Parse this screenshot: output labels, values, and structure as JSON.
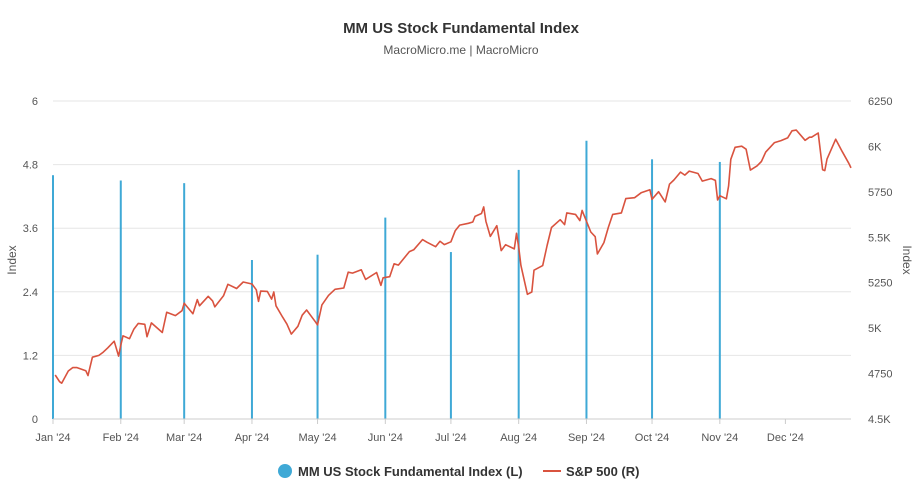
{
  "chart_data": {
    "type": "bar+line",
    "title": "MM US Stock Fundamental Index",
    "subtitle": "MacroMicro.me | MacroMicro",
    "x_axis": {
      "type": "date",
      "range": [
        "2024-01-01",
        "2024-12-31"
      ],
      "tick_labels": [
        "Jan '24",
        "Feb '24",
        "Mar '24",
        "Apr '24",
        "May '24",
        "Jun '24",
        "Jul '24",
        "Aug '24",
        "Sep '24",
        "Oct '24",
        "Nov '24",
        "Dec '24"
      ],
      "tick_dates": [
        "2024-01-01",
        "2024-02-01",
        "2024-03-01",
        "2024-04-01",
        "2024-05-01",
        "2024-06-01",
        "2024-07-01",
        "2024-08-01",
        "2024-09-01",
        "2024-10-01",
        "2024-11-01",
        "2024-12-01"
      ]
    },
    "y_left": {
      "label": "Index",
      "min": 0,
      "max": 6,
      "ticks": [
        0,
        1.2,
        2.4,
        3.6,
        4.8,
        6
      ],
      "tick_labels": [
        "0",
        "1.2",
        "2.4",
        "3.6",
        "4.8",
        "6"
      ]
    },
    "y_right": {
      "label": "Index",
      "min": 4500,
      "max": 6250,
      "ticks": [
        4500,
        4750,
        5000,
        5250,
        5500,
        5750,
        6000,
        6250
      ],
      "tick_labels": [
        "4.5K",
        "4750",
        "5K",
        "5250",
        "5.5K",
        "5750",
        "6K",
        "6250"
      ]
    },
    "series": [
      {
        "name": "MM US Stock Fundamental Index (L)",
        "type": "bar",
        "axis": "left",
        "color": "#3fa9d6",
        "points": [
          {
            "date": "2024-01-01",
            "value": 4.6
          },
          {
            "date": "2024-02-01",
            "value": 4.5
          },
          {
            "date": "2024-03-01",
            "value": 4.45
          },
          {
            "date": "2024-04-01",
            "value": 3.0
          },
          {
            "date": "2024-05-01",
            "value": 3.1
          },
          {
            "date": "2024-06-01",
            "value": 3.8
          },
          {
            "date": "2024-07-01",
            "value": 3.15
          },
          {
            "date": "2024-08-01",
            "value": 4.7
          },
          {
            "date": "2024-09-01",
            "value": 5.25
          },
          {
            "date": "2024-10-01",
            "value": 4.9
          },
          {
            "date": "2024-11-01",
            "value": 4.85
          }
        ]
      },
      {
        "name": "S&P 500 (R)",
        "type": "line",
        "axis": "right",
        "color": "#d9533f",
        "points": [
          [
            "2024-01-02",
            4742
          ],
          [
            "2024-01-04",
            4705
          ],
          [
            "2024-01-05",
            4697
          ],
          [
            "2024-01-08",
            4764
          ],
          [
            "2024-01-10",
            4783
          ],
          [
            "2024-01-12",
            4783
          ],
          [
            "2024-01-16",
            4766
          ],
          [
            "2024-01-17",
            4739
          ],
          [
            "2024-01-19",
            4840
          ],
          [
            "2024-01-22",
            4850
          ],
          [
            "2024-01-24",
            4868
          ],
          [
            "2024-01-26",
            4891
          ],
          [
            "2024-01-29",
            4928
          ],
          [
            "2024-01-31",
            4846
          ],
          [
            "2024-02-01",
            4906
          ],
          [
            "2024-02-02",
            4958
          ],
          [
            "2024-02-05",
            4942
          ],
          [
            "2024-02-07",
            4995
          ],
          [
            "2024-02-09",
            5026
          ],
          [
            "2024-02-12",
            5021
          ],
          [
            "2024-02-13",
            4953
          ],
          [
            "2024-02-15",
            5029
          ],
          [
            "2024-02-20",
            4976
          ],
          [
            "2024-02-22",
            5087
          ],
          [
            "2024-02-26",
            5069
          ],
          [
            "2024-02-29",
            5096
          ],
          [
            "2024-03-01",
            5137
          ],
          [
            "2024-03-05",
            5079
          ],
          [
            "2024-03-07",
            5157
          ],
          [
            "2024-03-08",
            5123
          ],
          [
            "2024-03-12",
            5175
          ],
          [
            "2024-03-14",
            5150
          ],
          [
            "2024-03-15",
            5117
          ],
          [
            "2024-03-19",
            5178
          ],
          [
            "2024-03-21",
            5241
          ],
          [
            "2024-03-25",
            5218
          ],
          [
            "2024-03-28",
            5254
          ],
          [
            "2024-04-01",
            5243
          ],
          [
            "2024-04-03",
            5211
          ],
          [
            "2024-04-04",
            5147
          ],
          [
            "2024-04-05",
            5204
          ],
          [
            "2024-04-08",
            5202
          ],
          [
            "2024-04-10",
            5160
          ],
          [
            "2024-04-11",
            5199
          ],
          [
            "2024-04-12",
            5123
          ],
          [
            "2024-04-15",
            5061
          ],
          [
            "2024-04-17",
            5022
          ],
          [
            "2024-04-19",
            4967
          ],
          [
            "2024-04-22",
            5010
          ],
          [
            "2024-04-24",
            5071
          ],
          [
            "2024-04-26",
            5100
          ],
          [
            "2024-04-30",
            5035
          ],
          [
            "2024-05-01",
            5018
          ],
          [
            "2024-05-03",
            5128
          ],
          [
            "2024-05-06",
            5180
          ],
          [
            "2024-05-09",
            5214
          ],
          [
            "2024-05-13",
            5221
          ],
          [
            "2024-05-15",
            5308
          ],
          [
            "2024-05-17",
            5303
          ],
          [
            "2024-05-21",
            5321
          ],
          [
            "2024-05-23",
            5268
          ],
          [
            "2024-05-28",
            5306
          ],
          [
            "2024-05-30",
            5235
          ],
          [
            "2024-05-31",
            5277
          ],
          [
            "2024-06-03",
            5283
          ],
          [
            "2024-06-05",
            5354
          ],
          [
            "2024-06-07",
            5347
          ],
          [
            "2024-06-12",
            5421
          ],
          [
            "2024-06-14",
            5431
          ],
          [
            "2024-06-18",
            5487
          ],
          [
            "2024-06-20",
            5473
          ],
          [
            "2024-06-24",
            5448
          ],
          [
            "2024-06-26",
            5478
          ],
          [
            "2024-06-28",
            5460
          ],
          [
            "2024-07-01",
            5475
          ],
          [
            "2024-07-03",
            5537
          ],
          [
            "2024-07-05",
            5567
          ],
          [
            "2024-07-09",
            5577
          ],
          [
            "2024-07-11",
            5584
          ],
          [
            "2024-07-12",
            5615
          ],
          [
            "2024-07-15",
            5631
          ],
          [
            "2024-07-16",
            5667
          ],
          [
            "2024-07-17",
            5588
          ],
          [
            "2024-07-19",
            5505
          ],
          [
            "2024-07-22",
            5564
          ],
          [
            "2024-07-24",
            5427
          ],
          [
            "2024-07-26",
            5459
          ],
          [
            "2024-07-30",
            5436
          ],
          [
            "2024-07-31",
            5522
          ],
          [
            "2024-08-01",
            5446
          ],
          [
            "2024-08-02",
            5346
          ],
          [
            "2024-08-05",
            5186
          ],
          [
            "2024-08-07",
            5199
          ],
          [
            "2024-08-08",
            5319
          ],
          [
            "2024-08-12",
            5344
          ],
          [
            "2024-08-14",
            5455
          ],
          [
            "2024-08-16",
            5554
          ],
          [
            "2024-08-20",
            5597
          ],
          [
            "2024-08-22",
            5570
          ],
          [
            "2024-08-23",
            5634
          ],
          [
            "2024-08-27",
            5626
          ],
          [
            "2024-08-29",
            5592
          ],
          [
            "2024-08-30",
            5648
          ],
          [
            "2024-09-03",
            5529
          ],
          [
            "2024-09-05",
            5503
          ],
          [
            "2024-09-06",
            5408
          ],
          [
            "2024-09-09",
            5471
          ],
          [
            "2024-09-11",
            5554
          ],
          [
            "2024-09-13",
            5626
          ],
          [
            "2024-09-17",
            5634
          ],
          [
            "2024-09-19",
            5713
          ],
          [
            "2024-09-23",
            5718
          ],
          [
            "2024-09-26",
            5745
          ],
          [
            "2024-09-30",
            5762
          ],
          [
            "2024-10-01",
            5709
          ],
          [
            "2024-10-04",
            5751
          ],
          [
            "2024-10-07",
            5695
          ],
          [
            "2024-10-09",
            5792
          ],
          [
            "2024-10-11",
            5815
          ],
          [
            "2024-10-14",
            5859
          ],
          [
            "2024-10-16",
            5842
          ],
          [
            "2024-10-18",
            5864
          ],
          [
            "2024-10-22",
            5851
          ],
          [
            "2024-10-24",
            5809
          ],
          [
            "2024-10-28",
            5823
          ],
          [
            "2024-10-30",
            5813
          ],
          [
            "2024-10-31",
            5705
          ],
          [
            "2024-11-01",
            5729
          ],
          [
            "2024-11-04",
            5712
          ],
          [
            "2024-11-05",
            5783
          ],
          [
            "2024-11-06",
            5929
          ],
          [
            "2024-11-08",
            5995
          ],
          [
            "2024-11-11",
            6001
          ],
          [
            "2024-11-13",
            5985
          ],
          [
            "2024-11-15",
            5870
          ],
          [
            "2024-11-18",
            5893
          ],
          [
            "2024-11-20",
            5917
          ],
          [
            "2024-11-22",
            5969
          ],
          [
            "2024-11-26",
            6021
          ],
          [
            "2024-11-29",
            6032
          ],
          [
            "2024-12-02",
            6047
          ],
          [
            "2024-12-04",
            6086
          ],
          [
            "2024-12-06",
            6090
          ],
          [
            "2024-12-10",
            6034
          ],
          [
            "2024-12-12",
            6051
          ],
          [
            "2024-12-13",
            6051
          ],
          [
            "2024-12-16",
            6074
          ],
          [
            "2024-12-18",
            5872
          ],
          [
            "2024-12-19",
            5867
          ],
          [
            "2024-12-20",
            5930
          ],
          [
            "2024-12-24",
            6040
          ],
          [
            "2024-12-27",
            5971
          ],
          [
            "2024-12-30",
            5907
          ],
          [
            "2024-12-31",
            5882
          ]
        ]
      }
    ],
    "legend": {
      "position": "bottom-center"
    }
  }
}
